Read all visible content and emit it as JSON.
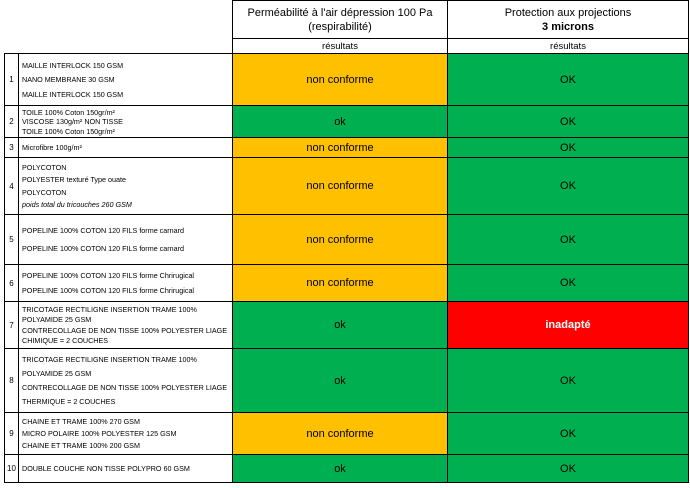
{
  "header": {
    "columns": [
      {
        "lines": [
          "Perméabilité à l'air dépression 100 Pa",
          "(respirabilité)"
        ],
        "sub": "résultats"
      },
      {
        "lines": [
          "Protection aux projections",
          "3 microns"
        ],
        "sub": "résultats"
      }
    ]
  },
  "rows": [
    {
      "num": "1",
      "lines": [
        "MAILLE INTERLOCK 150 GSM",
        "NANO MEMBRANE 30 GSM",
        "MAILLE INTERLOCK 150 GSM"
      ],
      "results": [
        {
          "text": "non conforme",
          "color": "#FFC000"
        },
        {
          "text": "OK",
          "color": "#00B050"
        }
      ]
    },
    {
      "num": "2",
      "lines": [
        "TOILE  100% Coton 150gr/m²",
        "VISCOSE 130g/m² NON TISSE",
        "TOILE  100% Coton 150gr/m²"
      ],
      "results": [
        {
          "text": "ok",
          "color": "#00B050"
        },
        {
          "text": "OK",
          "color": "#00B050"
        }
      ]
    },
    {
      "num": "3",
      "lines": [
        "Microfibre 100g/m²"
      ],
      "results": [
        {
          "text": "non conforme",
          "color": "#FFC000"
        },
        {
          "text": "OK",
          "color": "#00B050"
        }
      ]
    },
    {
      "num": "4",
      "lines": [
        "POLYCOTON",
        "POLYESTER texturé  Type ouate",
        "POLYCOTON"
      ],
      "note": "poids total du tricouches 260 GSM",
      "results": [
        {
          "text": "non conforme",
          "color": "#FFC000"
        },
        {
          "text": "OK",
          "color": "#00B050"
        }
      ]
    },
    {
      "num": "5",
      "lines": [
        "POPELINE 100% COTON 120 FILS forme carnard",
        "POPELINE 100% COTON 120 FILS forme carnard"
      ],
      "results": [
        {
          "text": "non conforme",
          "color": "#FFC000"
        },
        {
          "text": "OK",
          "color": "#00B050"
        }
      ]
    },
    {
      "num": "6",
      "lines": [
        "POPELINE 100% COTON 120 FILS forme Chrirugical",
        "POPELINE 100% COTON 120 FILS forme Chrirugical"
      ],
      "results": [
        {
          "text": "non conforme",
          "color": "#FFC000"
        },
        {
          "text": "OK",
          "color": "#00B050"
        }
      ]
    },
    {
      "num": "7",
      "lines": [
        "TRICOTAGE RECTILIGNE INSERTION TRAME 100%",
        "POLYAMIDE 25 GSM",
        "CONTRECOLLAGE DE NON TISSE 100% POLYESTER LIAGE",
        "CHIMIQUE = 2 COUCHES"
      ],
      "results": [
        {
          "text": "ok",
          "color": "#00B050"
        },
        {
          "text": "inadapté",
          "color": "#FF0000"
        }
      ]
    },
    {
      "num": "8",
      "lines": [
        "TRICOTAGE RECTILIGNE INSERTION TRAME 100%",
        "POLYAMIDE 25 GSM",
        "CONTRECOLLAGE DE NON TISSE 100% POLYESTER LIAGE",
        "THERMIQUE = 2 COUCHES"
      ],
      "results": [
        {
          "text": "ok",
          "color": "#00B050"
        },
        {
          "text": "OK",
          "color": "#00B050"
        }
      ]
    },
    {
      "num": "9",
      "lines": [
        "CHAINE ET TRAME 100% 270 GSM",
        "MICRO POLAIRE 100% POLYESTER 125 GSM",
        "CHAINE ET TRAME 100% 200 GSM"
      ],
      "results": [
        {
          "text": "non conforme",
          "color": "#FFC000"
        },
        {
          "text": "OK",
          "color": "#00B050"
        }
      ]
    },
    {
      "num": "10",
      "lines": [
        "DOUBLE COUCHE NON TISSE POLYPRO 60 GSM"
      ],
      "results": [
        {
          "text": "ok",
          "color": "#00B050"
        },
        {
          "text": "OK",
          "color": "#00B050"
        }
      ]
    }
  ]
}
